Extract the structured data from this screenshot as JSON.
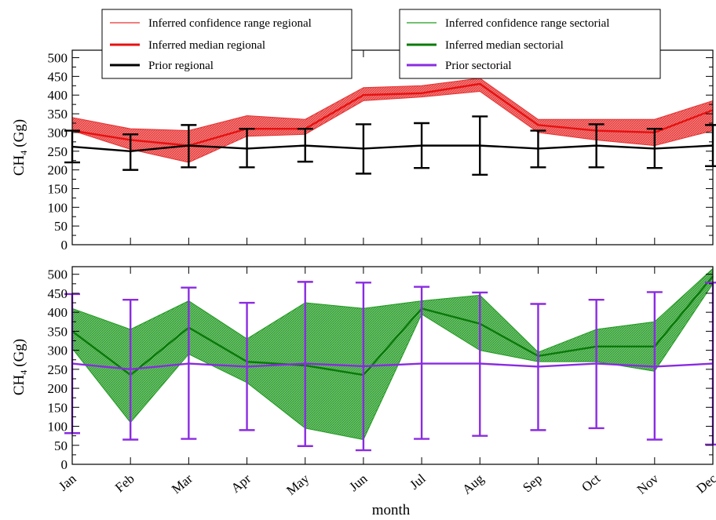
{
  "chart_data": [
    {
      "type": "line",
      "ylabel": "CH",
      "ylabel_subscript": "4",
      "ylabel_unit": "(Gg)",
      "ylim": [
        0,
        520
      ],
      "yticks": [
        0,
        50,
        100,
        150,
        200,
        250,
        300,
        350,
        400,
        450,
        500
      ],
      "categories": [
        "Jan",
        "Feb",
        "Mar",
        "Apr",
        "May",
        "Jun",
        "Jul",
        "Aug",
        "Sep",
        "Oct",
        "Nov",
        "Dec"
      ],
      "legend_position": "top",
      "band": {
        "name": "Inferred confidence range regional",
        "color": "#e83030",
        "lower": [
          305,
          255,
          220,
          290,
          295,
          385,
          395,
          410,
          300,
          280,
          265,
          305
        ],
        "upper": [
          340,
          310,
          305,
          345,
          335,
          420,
          425,
          445,
          335,
          335,
          335,
          385
        ]
      },
      "series": [
        {
          "name": "Inferred median regional",
          "color": "#e81010",
          "values": [
            305,
            280,
            265,
            310,
            310,
            400,
            405,
            430,
            320,
            305,
            300,
            360
          ]
        },
        {
          "name": "Prior regional",
          "color": "#000000",
          "values": [
            262,
            250,
            265,
            257,
            265,
            257,
            265,
            265,
            257,
            265,
            257,
            265
          ],
          "err_lower": [
            220,
            200,
            207,
            207,
            222,
            190,
            205,
            187,
            207,
            207,
            205,
            210
          ],
          "err_upper": [
            305,
            295,
            320,
            310,
            310,
            322,
            325,
            343,
            305,
            322,
            310,
            320
          ]
        }
      ]
    },
    {
      "type": "line",
      "xlabel": "month",
      "ylabel": "CH",
      "ylabel_subscript": "4",
      "ylabel_unit": "(Gg)",
      "ylim": [
        0,
        520
      ],
      "yticks": [
        0,
        50,
        100,
        150,
        200,
        250,
        300,
        350,
        400,
        450,
        500
      ],
      "categories": [
        "Jan",
        "Feb",
        "Mar",
        "Apr",
        "May",
        "Jun",
        "Jul",
        "Aug",
        "Sep",
        "Oct",
        "Nov",
        "Dec"
      ],
      "legend_position": "top",
      "band": {
        "name": "Inferred confidence range sectorial",
        "color": "#1e9a1e",
        "lower": [
          305,
          110,
          290,
          215,
          95,
          65,
          395,
          300,
          270,
          270,
          245,
          475
        ],
        "upper": [
          410,
          355,
          430,
          330,
          425,
          410,
          430,
          445,
          295,
          355,
          375,
          515
        ]
      },
      "series": [
        {
          "name": "Inferred median sectorial",
          "color": "#0a7a0a",
          "values": [
            350,
            235,
            360,
            270,
            260,
            235,
            410,
            370,
            285,
            310,
            310,
            495
          ]
        },
        {
          "name": "Prior sectorial",
          "color": "#8a2be2",
          "values": [
            265,
            250,
            265,
            257,
            265,
            258,
            265,
            265,
            257,
            265,
            257,
            265
          ],
          "err_lower": [
            82,
            65,
            67,
            90,
            48,
            37,
            67,
            75,
            90,
            95,
            65,
            52
          ],
          "err_upper": [
            448,
            433,
            465,
            425,
            480,
            478,
            467,
            452,
            422,
            433,
            453,
            478
          ]
        }
      ]
    }
  ]
}
